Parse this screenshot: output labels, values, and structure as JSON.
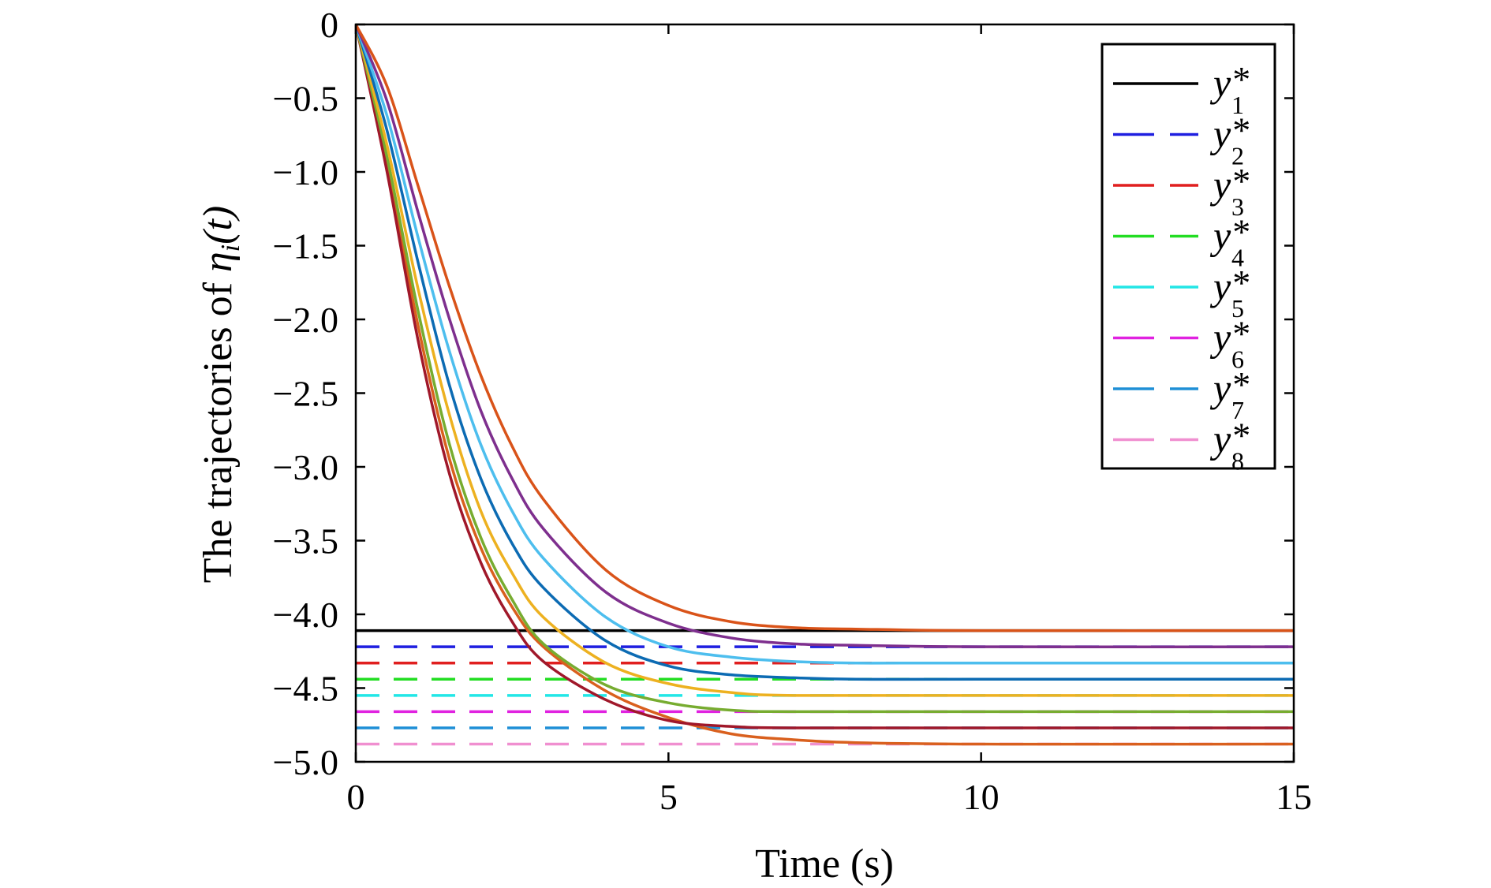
{
  "chart_data": {
    "type": "line",
    "title": "",
    "xlabel": "Time (s)",
    "ylabel_parts": {
      "prefix": "The trajectories of ",
      "symbol": "η",
      "subscript": "i",
      "suffix": "(t)"
    },
    "xlim": [
      0,
      15
    ],
    "ylim": [
      -5.0,
      0
    ],
    "x_ticks": [
      {
        "value": 0,
        "label": "0"
      },
      {
        "value": 5,
        "label": "5"
      },
      {
        "value": 10,
        "label": "10"
      },
      {
        "value": 15,
        "label": "15"
      }
    ],
    "y_ticks": [
      {
        "value": 0,
        "label": "0"
      },
      {
        "value": -0.5,
        "label": "−0.5"
      },
      {
        "value": -1.0,
        "label": "−1.0"
      },
      {
        "value": -1.5,
        "label": "−1.5"
      },
      {
        "value": -2.0,
        "label": "−2.0"
      },
      {
        "value": -2.5,
        "label": "−2.5"
      },
      {
        "value": -3.0,
        "label": "−3.0"
      },
      {
        "value": -3.5,
        "label": "−3.5"
      },
      {
        "value": -4.0,
        "label": "−4.0"
      },
      {
        "value": -4.5,
        "label": "−4.5"
      },
      {
        "value": -5.0,
        "label": "−5.0"
      }
    ],
    "grid": false,
    "legend_position": "top-right",
    "reference_lines": [
      {
        "label_base": "y",
        "label_sub": "1",
        "label_sup": "*",
        "value": -4.11,
        "color": "#000000",
        "dashed": false
      },
      {
        "label_base": "y",
        "label_sub": "2",
        "label_sup": "*",
        "value": -4.22,
        "color": "#1f1fe0",
        "dashed": true
      },
      {
        "label_base": "y",
        "label_sub": "3",
        "label_sup": "*",
        "value": -4.33,
        "color": "#e01f1f",
        "dashed": true
      },
      {
        "label_base": "y",
        "label_sub": "4",
        "label_sup": "*",
        "value": -4.44,
        "color": "#22dd22",
        "dashed": true
      },
      {
        "label_base": "y",
        "label_sub": "5",
        "label_sup": "*",
        "value": -4.55,
        "color": "#22e6e6",
        "dashed": true
      },
      {
        "label_base": "y",
        "label_sub": "6",
        "label_sup": "*",
        "value": -4.66,
        "color": "#e022e0",
        "dashed": true
      },
      {
        "label_base": "y",
        "label_sub": "7",
        "label_sup": "*",
        "value": -4.77,
        "color": "#1f8fd6",
        "dashed": true
      },
      {
        "label_base": "y",
        "label_sub": "8",
        "label_sup": "*",
        "value": -4.88,
        "color": "#f08fd0",
        "dashed": true
      }
    ],
    "series": [
      {
        "color": "#d9601e",
        "points": [
          [
            0,
            0
          ],
          [
            0.5,
            -0.95
          ],
          [
            1,
            -2.05
          ],
          [
            1.5,
            -2.95
          ],
          [
            2,
            -3.55
          ],
          [
            2.5,
            -3.95
          ],
          [
            3,
            -4.22
          ],
          [
            4,
            -4.52
          ],
          [
            5,
            -4.7
          ],
          [
            6,
            -4.81
          ],
          [
            7,
            -4.85
          ],
          [
            8,
            -4.87
          ],
          [
            10,
            -4.88
          ],
          [
            15,
            -4.88
          ]
        ]
      },
      {
        "color": "#a0182a",
        "points": [
          [
            0,
            0
          ],
          [
            0.5,
            -1.0
          ],
          [
            1,
            -2.15
          ],
          [
            1.5,
            -3.05
          ],
          [
            2,
            -3.65
          ],
          [
            2.5,
            -4.05
          ],
          [
            3,
            -4.32
          ],
          [
            4,
            -4.58
          ],
          [
            5,
            -4.72
          ],
          [
            6,
            -4.76
          ],
          [
            7,
            -4.77
          ],
          [
            10,
            -4.77
          ],
          [
            15,
            -4.77
          ]
        ]
      },
      {
        "color": "#77ac30",
        "points": [
          [
            0,
            0
          ],
          [
            0.5,
            -0.9
          ],
          [
            1,
            -1.95
          ],
          [
            1.5,
            -2.85
          ],
          [
            2,
            -3.48
          ],
          [
            2.5,
            -3.9
          ],
          [
            3,
            -4.2
          ],
          [
            4,
            -4.48
          ],
          [
            5,
            -4.6
          ],
          [
            6,
            -4.65
          ],
          [
            7,
            -4.66
          ],
          [
            10,
            -4.66
          ],
          [
            15,
            -4.66
          ]
        ]
      },
      {
        "color": "#edb120",
        "points": [
          [
            0,
            0
          ],
          [
            0.5,
            -0.82
          ],
          [
            1,
            -1.8
          ],
          [
            1.5,
            -2.65
          ],
          [
            2,
            -3.3
          ],
          [
            2.5,
            -3.72
          ],
          [
            3,
            -4.02
          ],
          [
            4,
            -4.33
          ],
          [
            5,
            -4.47
          ],
          [
            6,
            -4.53
          ],
          [
            7,
            -4.55
          ],
          [
            10,
            -4.55
          ],
          [
            15,
            -4.55
          ]
        ]
      },
      {
        "color": "#0c6bb3",
        "points": [
          [
            0,
            0
          ],
          [
            0.5,
            -0.72
          ],
          [
            1,
            -1.62
          ],
          [
            1.5,
            -2.45
          ],
          [
            2,
            -3.08
          ],
          [
            2.5,
            -3.52
          ],
          [
            3,
            -3.82
          ],
          [
            4,
            -4.18
          ],
          [
            5,
            -4.35
          ],
          [
            6,
            -4.41
          ],
          [
            7,
            -4.43
          ],
          [
            8,
            -4.44
          ],
          [
            10,
            -4.44
          ],
          [
            15,
            -4.44
          ]
        ]
      },
      {
        "color": "#4dbeee",
        "points": [
          [
            0,
            0
          ],
          [
            0.5,
            -0.62
          ],
          [
            1,
            -1.45
          ],
          [
            1.5,
            -2.22
          ],
          [
            2,
            -2.85
          ],
          [
            2.5,
            -3.3
          ],
          [
            3,
            -3.62
          ],
          [
            4,
            -4.02
          ],
          [
            5,
            -4.22
          ],
          [
            6,
            -4.29
          ],
          [
            7,
            -4.32
          ],
          [
            8,
            -4.33
          ],
          [
            10,
            -4.33
          ],
          [
            15,
            -4.33
          ]
        ]
      },
      {
        "color": "#7e2f8e",
        "points": [
          [
            0,
            0
          ],
          [
            0.5,
            -0.52
          ],
          [
            1,
            -1.28
          ],
          [
            1.5,
            -2.0
          ],
          [
            2,
            -2.62
          ],
          [
            2.5,
            -3.08
          ],
          [
            3,
            -3.42
          ],
          [
            4,
            -3.85
          ],
          [
            5,
            -4.06
          ],
          [
            6,
            -4.16
          ],
          [
            7,
            -4.2
          ],
          [
            8,
            -4.21
          ],
          [
            10,
            -4.22
          ],
          [
            15,
            -4.22
          ]
        ]
      },
      {
        "color": "#d95319",
        "points": [
          [
            0,
            0
          ],
          [
            0.5,
            -0.42
          ],
          [
            1,
            -1.1
          ],
          [
            1.5,
            -1.78
          ],
          [
            2,
            -2.38
          ],
          [
            2.5,
            -2.86
          ],
          [
            3,
            -3.22
          ],
          [
            4,
            -3.7
          ],
          [
            5,
            -3.94
          ],
          [
            6,
            -4.05
          ],
          [
            7,
            -4.09
          ],
          [
            8,
            -4.1
          ],
          [
            10,
            -4.11
          ],
          [
            15,
            -4.11
          ]
        ]
      }
    ]
  }
}
